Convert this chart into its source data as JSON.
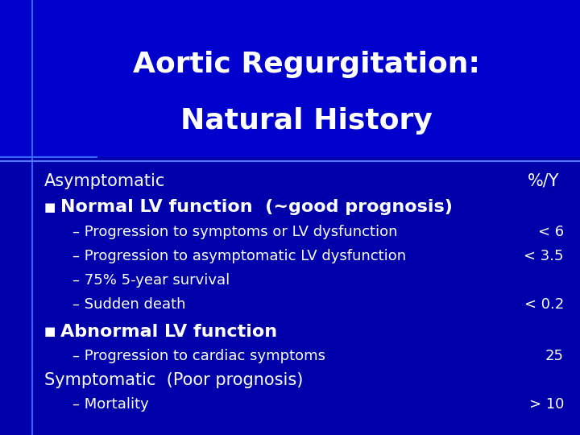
{
  "title_line1": "Aortic Regurgitation:",
  "title_line2": "Natural History",
  "bg_color": "#0000AA",
  "title_bg_color": "#0000CC",
  "text_white": "#FFFFFF",
  "text_yellow": "#DDDDFF",
  "header_line1": "Asymptomatic",
  "header_pct": "%/Y",
  "bullet1_text": "Normal LV function  (~good prognosis)",
  "sub1_1_left": "– Progression to symptoms or LV dysfunction",
  "sub1_1_right": "< 6",
  "sub1_2_left": "– Progression to asymptomatic LV dysfunction",
  "sub1_2_right": "< 3.5",
  "sub1_3": "– 75% 5-year survival",
  "sub1_4_left": "– Sudden death",
  "sub1_4_right": "< 0.2",
  "bullet2_text": "Abnormal LV function",
  "sub2_1_left": "– Progression to cardiac symptoms",
  "sub2_1_right": "25",
  "symptomatic_text": "Symptomatic  (Poor prognosis)",
  "sub3_1_left": "– Mortality",
  "sub3_1_right": "> 10",
  "title_font_size": 26,
  "header_font_size": 15,
  "bullet_font_size": 16,
  "sub_font_size": 13,
  "symptomatic_font_size": 15
}
